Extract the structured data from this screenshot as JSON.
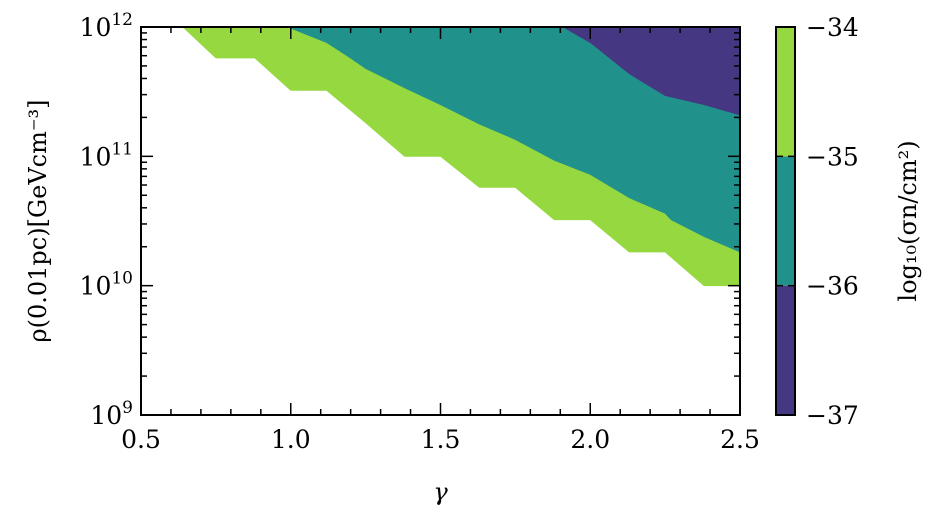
{
  "chart_data": {
    "type": "filled_contour",
    "xlabel": "γ",
    "ylabel": "ρ(0.01pc)[GeVcm⁻³]",
    "xlim": [
      0.5,
      2.5
    ],
    "ylim_log10": [
      9,
      12
    ],
    "y_scale": "log",
    "x_ticks": [
      "0.5",
      "1.0",
      "1.5",
      "2.0",
      "2.5"
    ],
    "y_ticks": [
      {
        "base": "10",
        "exp": "9"
      },
      {
        "base": "10",
        "exp": "10"
      },
      {
        "base": "10",
        "exp": "11"
      },
      {
        "base": "10",
        "exp": "12"
      }
    ],
    "colorbar": {
      "label": "log₁₀(σn/cm²)",
      "ticks": [
        "−34",
        "−35",
        "−36",
        "−37"
      ],
      "levels": [
        -37,
        -36,
        -35,
        -34
      ],
      "colors": [
        "#453781",
        "#21918c",
        "#95d840"
      ]
    },
    "regions": [
      {
        "level_range": [
          -35,
          -34
        ],
        "color": "#95d840",
        "boundary": [
          [
            0.64,
            12.0
          ],
          [
            0.75,
            11.76
          ],
          [
            0.88,
            11.76
          ],
          [
            1.0,
            11.51
          ],
          [
            1.12,
            11.51
          ],
          [
            1.25,
            11.26
          ],
          [
            1.38,
            11.0
          ],
          [
            1.5,
            11.0
          ],
          [
            1.63,
            10.76
          ],
          [
            1.75,
            10.76
          ],
          [
            1.88,
            10.51
          ],
          [
            2.0,
            10.51
          ],
          [
            2.13,
            10.26
          ],
          [
            2.25,
            10.26
          ],
          [
            2.38,
            10.0
          ],
          [
            2.5,
            10.0
          ],
          [
            2.5,
            10.26
          ],
          [
            2.38,
            10.38
          ],
          [
            2.27,
            10.51
          ],
          [
            2.25,
            10.56
          ],
          [
            2.13,
            10.68
          ],
          [
            2.0,
            10.86
          ],
          [
            1.88,
            10.97
          ],
          [
            1.75,
            11.13
          ],
          [
            1.63,
            11.25
          ],
          [
            1.5,
            11.4
          ],
          [
            1.38,
            11.53
          ],
          [
            1.25,
            11.68
          ],
          [
            1.2,
            11.76
          ],
          [
            1.12,
            11.88
          ],
          [
            1.0,
            11.99
          ]
        ]
      },
      {
        "level_range": [
          -36,
          -35
        ],
        "color": "#21918c",
        "boundary": [
          [
            1.0,
            11.99
          ],
          [
            1.12,
            11.88
          ],
          [
            1.2,
            11.76
          ],
          [
            1.25,
            11.68
          ],
          [
            1.38,
            11.53
          ],
          [
            1.5,
            11.4
          ],
          [
            1.63,
            11.25
          ],
          [
            1.75,
            11.13
          ],
          [
            1.88,
            10.97
          ],
          [
            2.0,
            10.86
          ],
          [
            2.13,
            10.68
          ],
          [
            2.25,
            10.56
          ],
          [
            2.27,
            10.51
          ],
          [
            2.38,
            10.38
          ],
          [
            2.5,
            10.26
          ],
          [
            2.5,
            11.32
          ],
          [
            2.38,
            11.4
          ],
          [
            2.25,
            11.47
          ],
          [
            2.13,
            11.64
          ],
          [
            2.0,
            11.88
          ],
          [
            1.91,
            12.0
          ]
        ]
      },
      {
        "level_range": [
          -37,
          -36
        ],
        "color": "#453781",
        "boundary": [
          [
            1.91,
            12.0
          ],
          [
            2.0,
            11.88
          ],
          [
            2.13,
            11.64
          ],
          [
            2.25,
            11.47
          ],
          [
            2.38,
            11.4
          ],
          [
            2.5,
            11.32
          ],
          [
            2.5,
            12.0
          ]
        ]
      }
    ]
  }
}
